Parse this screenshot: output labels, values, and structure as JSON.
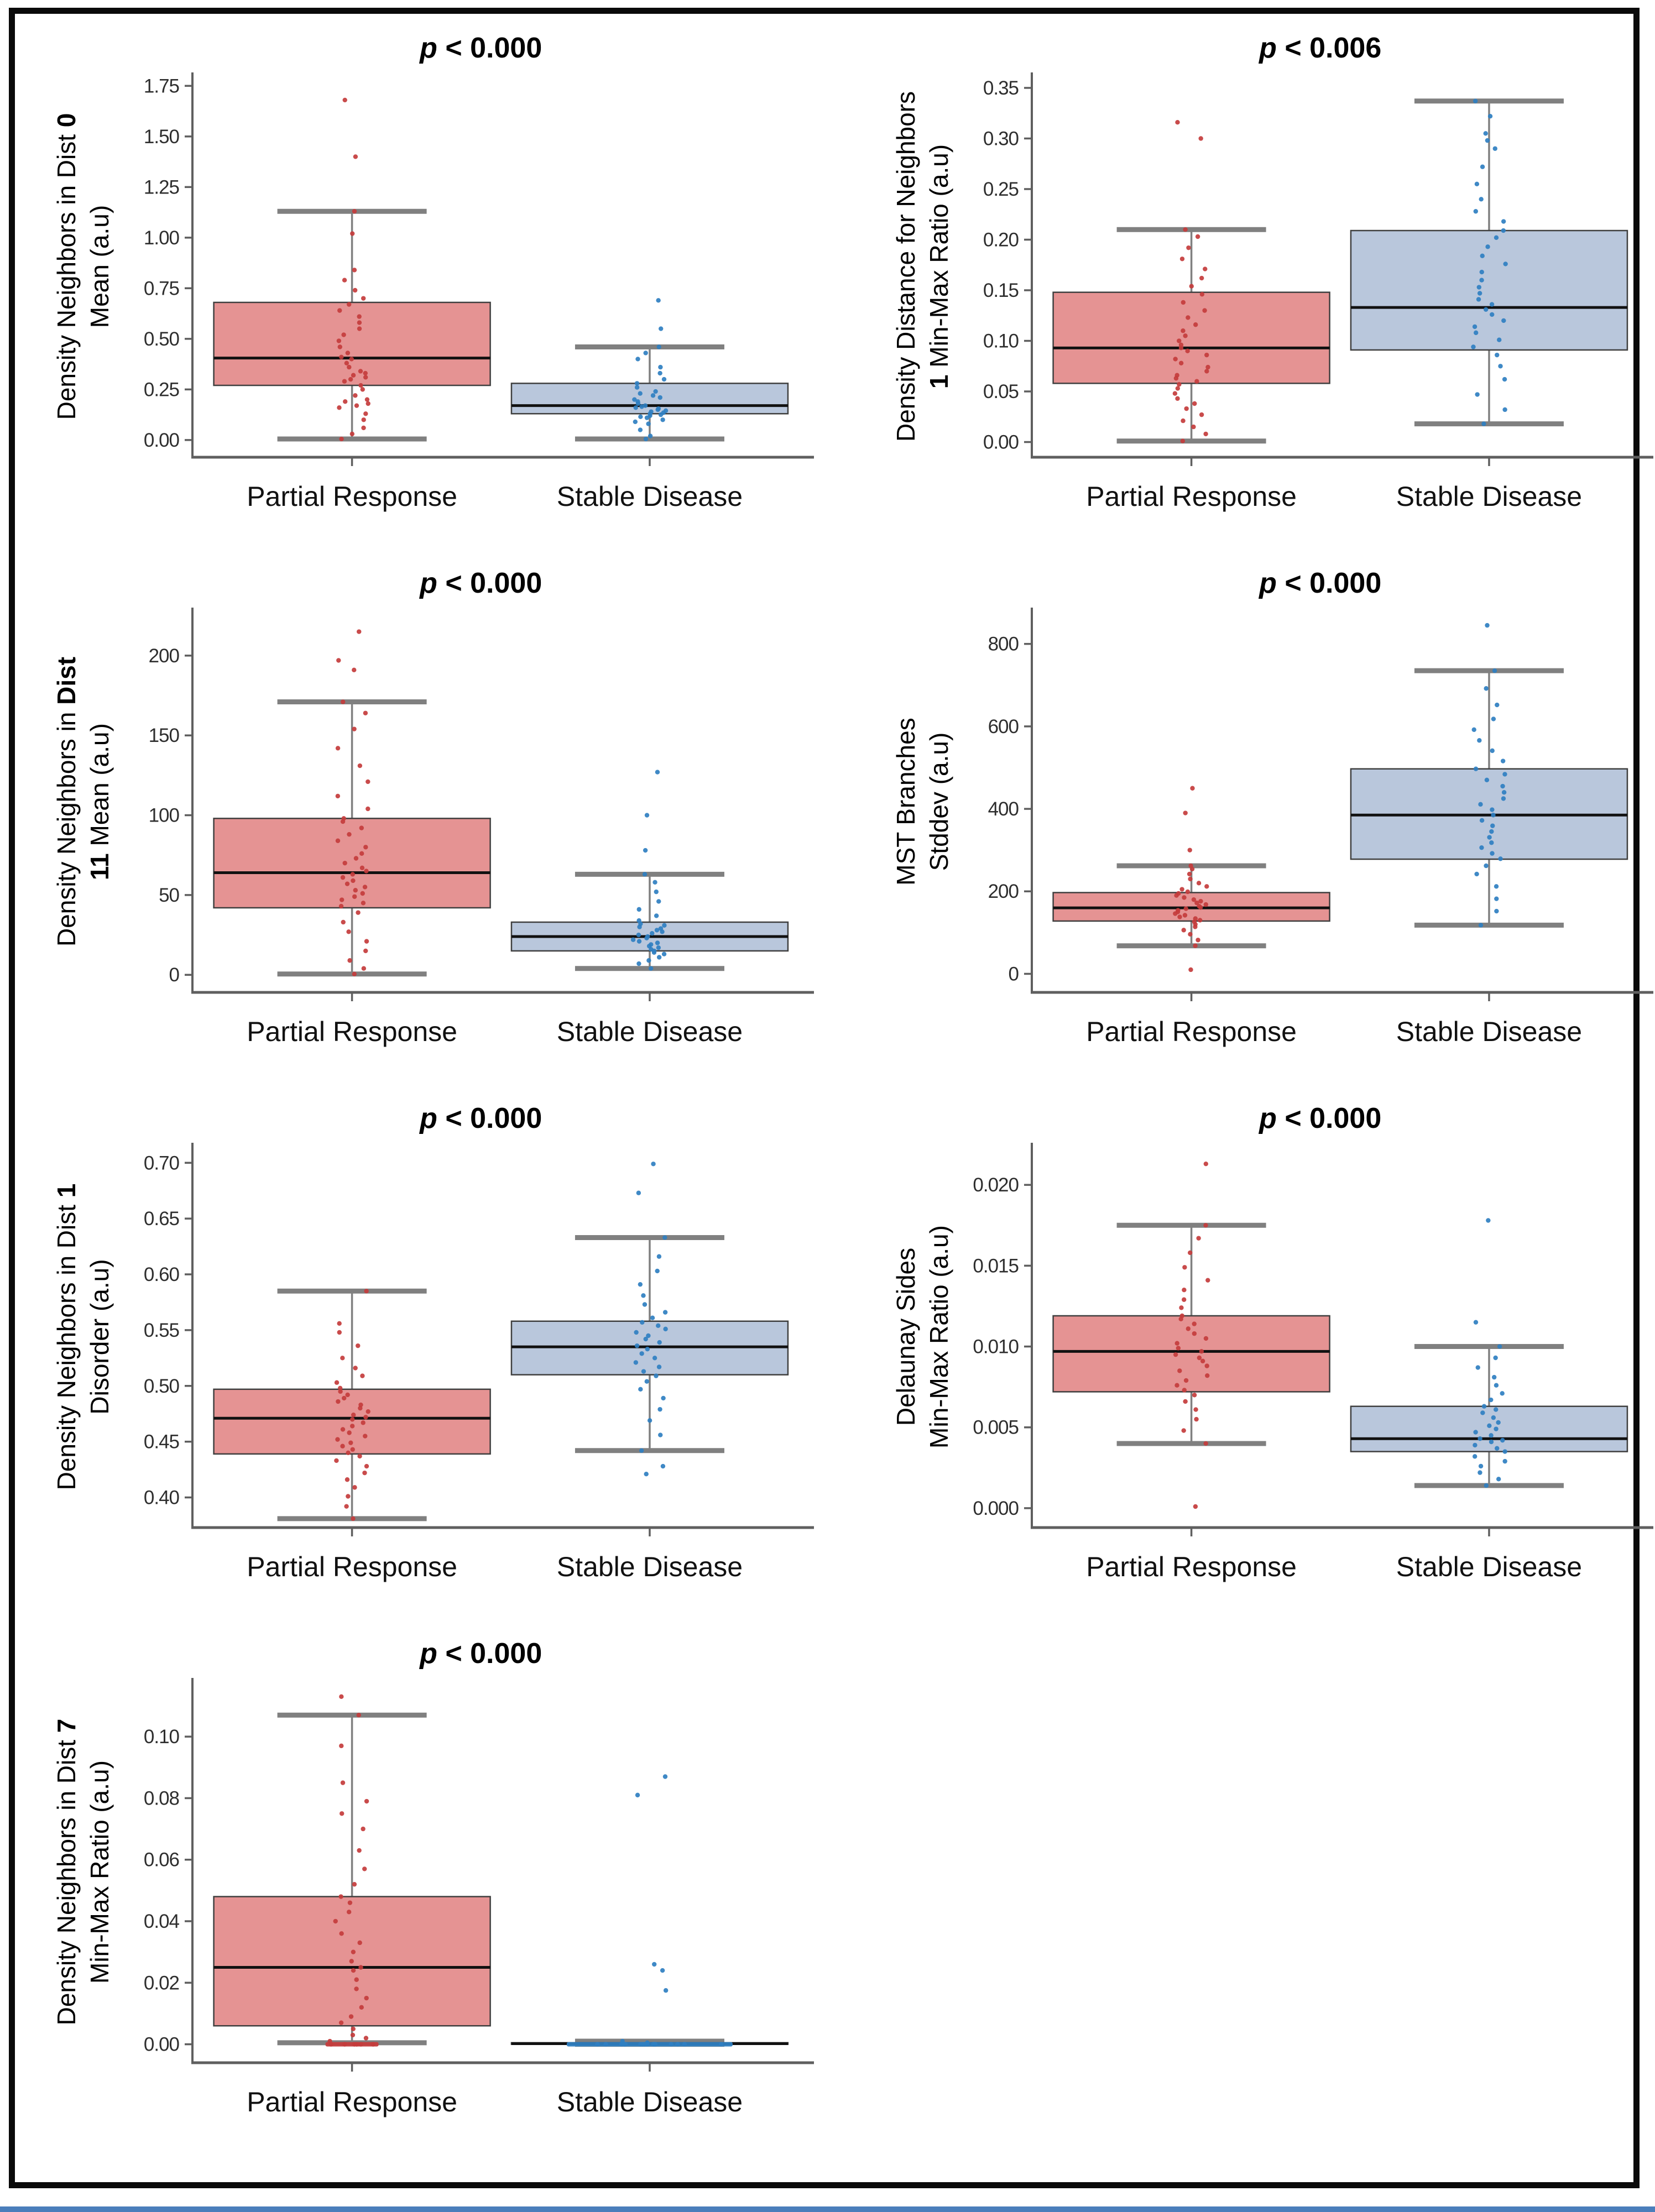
{
  "page": {
    "background": "#ffffff",
    "frame_color": "#0a0a0a",
    "bottom_accent_color": "#4a7ebb"
  },
  "colors": {
    "box_red_fill": "#e59393",
    "box_blue_fill": "#b9c7dc",
    "box_edge": "#3f3f3f",
    "median": "#111111",
    "whisker": "#808080",
    "point_red": "#c43c3c",
    "point_blue": "#2f7fc1",
    "spine": "#5f5f5f",
    "tick_text": "#2e2e2e",
    "title_text": "#000000"
  },
  "categories": [
    "Partial Response",
    "Stable Disease"
  ],
  "chart_data": [
    {
      "type": "box",
      "title": {
        "prefix": "p",
        "rest": " < 0.000"
      },
      "ylabel_lines": [
        [
          [
            "Density Neighbors in Dist ",
            0
          ],
          [
            "0",
            1
          ]
        ],
        [
          [
            "Mean (a.u)",
            0
          ]
        ]
      ],
      "ylim": [
        -0.085,
        1.8
      ],
      "yticks": [
        {
          "v": 0.0,
          "label": "0.00"
        },
        {
          "v": 0.25,
          "label": "0.25"
        },
        {
          "v": 0.5,
          "label": "0.50"
        },
        {
          "v": 0.75,
          "label": "0.75"
        },
        {
          "v": 1.0,
          "label": "1.00"
        },
        {
          "v": 1.25,
          "label": "1.25"
        },
        {
          "v": 1.5,
          "label": "1.50"
        },
        {
          "v": 1.75,
          "label": "1.75"
        }
      ],
      "groups": [
        {
          "name": "Partial Response",
          "color": "red",
          "q1": 0.27,
          "median": 0.405,
          "q3": 0.68,
          "whisker_low": 0.005,
          "whisker_high": 1.13,
          "points": [
            0.005,
            0.03,
            0.06,
            0.1,
            0.13,
            0.16,
            0.17,
            0.18,
            0.19,
            0.2,
            0.22,
            0.25,
            0.27,
            0.29,
            0.3,
            0.31,
            0.32,
            0.33,
            0.34,
            0.36,
            0.38,
            0.4,
            0.41,
            0.43,
            0.46,
            0.49,
            0.52,
            0.55,
            0.58,
            0.61,
            0.64,
            0.67,
            0.7,
            0.74,
            0.79,
            0.84,
            1.02,
            1.13,
            1.4,
            1.68
          ]
        },
        {
          "name": "Stable Disease",
          "color": "blue",
          "q1": 0.13,
          "median": 0.17,
          "q3": 0.28,
          "whisker_low": 0.005,
          "whisker_high": 0.46,
          "points": [
            0.005,
            0.02,
            0.05,
            0.08,
            0.09,
            0.1,
            0.11,
            0.115,
            0.12,
            0.125,
            0.13,
            0.135,
            0.14,
            0.145,
            0.15,
            0.155,
            0.16,
            0.165,
            0.17,
            0.18,
            0.19,
            0.2,
            0.21,
            0.22,
            0.23,
            0.24,
            0.26,
            0.28,
            0.3,
            0.33,
            0.36,
            0.4,
            0.43,
            0.46,
            0.55,
            0.69
          ]
        }
      ]
    },
    {
      "type": "box",
      "title": {
        "prefix": "p",
        "rest": " < 0.006"
      },
      "ylabel_lines": [
        [
          [
            "Density Distance for Neighbors",
            0
          ]
        ],
        [
          [
            "1 ",
            1
          ],
          [
            "Min-Max Ratio (a.u)",
            0
          ]
        ]
      ],
      "ylim": [
        -0.015,
        0.362
      ],
      "yticks": [
        {
          "v": 0.0,
          "label": "0.00"
        },
        {
          "v": 0.05,
          "label": "0.05"
        },
        {
          "v": 0.1,
          "label": "0.10"
        },
        {
          "v": 0.15,
          "label": "0.15"
        },
        {
          "v": 0.2,
          "label": "0.20"
        },
        {
          "v": 0.25,
          "label": "0.25"
        },
        {
          "v": 0.3,
          "label": "0.30"
        },
        {
          "v": 0.35,
          "label": "0.35"
        }
      ],
      "groups": [
        {
          "name": "Partial Response",
          "color": "red",
          "q1": 0.058,
          "median": 0.093,
          "q3": 0.148,
          "whisker_low": 0.001,
          "whisker_high": 0.21,
          "points": [
            0.001,
            0.008,
            0.015,
            0.021,
            0.027,
            0.033,
            0.038,
            0.043,
            0.048,
            0.053,
            0.057,
            0.06,
            0.063,
            0.066,
            0.07,
            0.074,
            0.078,
            0.082,
            0.086,
            0.09,
            0.093,
            0.096,
            0.1,
            0.105,
            0.11,
            0.116,
            0.123,
            0.13,
            0.138,
            0.146,
            0.154,
            0.162,
            0.171,
            0.181,
            0.192,
            0.203,
            0.21,
            0.3,
            0.316
          ]
        },
        {
          "name": "Stable Disease",
          "color": "blue",
          "q1": 0.091,
          "median": 0.133,
          "q3": 0.209,
          "whisker_low": 0.018,
          "whisker_high": 0.337,
          "points": [
            0.018,
            0.032,
            0.047,
            0.062,
            0.075,
            0.086,
            0.094,
            0.101,
            0.108,
            0.114,
            0.12,
            0.126,
            0.131,
            0.136,
            0.141,
            0.147,
            0.153,
            0.16,
            0.168,
            0.176,
            0.184,
            0.193,
            0.202,
            0.209,
            0.218,
            0.228,
            0.24,
            0.255,
            0.272,
            0.29,
            0.298,
            0.305,
            0.322,
            0.337
          ]
        }
      ]
    },
    {
      "type": "box",
      "title": {
        "prefix": "p",
        "rest": " < 0.000"
      },
      "ylabel_lines": [
        [
          [
            "Density Neighbors in ",
            0
          ],
          [
            "Dist",
            1
          ]
        ],
        [
          [
            "11 ",
            1
          ],
          [
            "Mean (a.u)",
            0
          ]
        ]
      ],
      "ylim": [
        -11,
        228
      ],
      "yticks": [
        {
          "v": 0,
          "label": "0"
        },
        {
          "v": 50,
          "label": "50"
        },
        {
          "v": 100,
          "label": "100"
        },
        {
          "v": 150,
          "label": "150"
        },
        {
          "v": 200,
          "label": "200"
        }
      ],
      "groups": [
        {
          "name": "Partial Response",
          "color": "red",
          "q1": 42,
          "median": 64,
          "q3": 98,
          "whisker_low": 0.5,
          "whisker_high": 171,
          "points": [
            0.5,
            4,
            9,
            15,
            21,
            27,
            33,
            39,
            43,
            45,
            47,
            49,
            51,
            53,
            55,
            57,
            59,
            61,
            63,
            65,
            67,
            70,
            73,
            76,
            80,
            84,
            88,
            92,
            96,
            98,
            104,
            112,
            121,
            131,
            142,
            154,
            164,
            171,
            191,
            197,
            215
          ]
        },
        {
          "name": "Stable Disease",
          "color": "blue",
          "q1": 15,
          "median": 24,
          "q3": 33,
          "whisker_low": 4,
          "whisker_high": 63,
          "points": [
            4,
            7,
            9,
            11,
            13,
            14,
            15,
            16,
            17,
            18,
            19,
            20,
            21,
            22,
            23,
            24,
            25,
            26,
            27,
            28,
            29,
            30,
            31,
            32,
            34,
            37,
            41,
            46,
            52,
            58,
            63,
            78,
            100,
            127
          ]
        }
      ]
    },
    {
      "type": "box",
      "title": {
        "prefix": "p",
        "rest": " < 0.000"
      },
      "ylabel_lines": [
        [
          [
            "MST Branches",
            0
          ]
        ],
        [
          [
            "Stddev (a.u)",
            0
          ]
        ]
      ],
      "ylim": [
        -45,
        880
      ],
      "yticks": [
        {
          "v": 0,
          "label": "0"
        },
        {
          "v": 200,
          "label": "200"
        },
        {
          "v": 400,
          "label": "400"
        },
        {
          "v": 600,
          "label": "600"
        },
        {
          "v": 800,
          "label": "800"
        }
      ],
      "groups": [
        {
          "name": "Partial Response",
          "color": "red",
          "q1": 128,
          "median": 160,
          "q3": 197,
          "whisker_low": 68,
          "whisker_high": 262,
          "points": [
            10,
            68,
            82,
            96,
            106,
            114,
            120,
            126,
            130,
            134,
            138,
            142,
            146,
            150,
            154,
            158,
            161,
            164,
            168,
            172,
            176,
            180,
            185,
            190,
            195,
            199,
            205,
            212,
            220,
            230,
            242,
            254,
            262,
            300,
            390,
            450
          ]
        },
        {
          "name": "Stable Disease",
          "color": "blue",
          "q1": 278,
          "median": 385,
          "q3": 497,
          "whisker_low": 118,
          "whisker_high": 735,
          "points": [
            118,
            152,
            182,
            212,
            242,
            262,
            279,
            292,
            306,
            318,
            331,
            345,
            359,
            372,
            385,
            398,
            411,
            425,
            440,
            455,
            470,
            484,
            497,
            516,
            541,
            566,
            592,
            618,
            652,
            692,
            735,
            845
          ]
        }
      ]
    },
    {
      "type": "box",
      "title": {
        "prefix": "p",
        "rest": " < 0.000"
      },
      "ylabel_lines": [
        [
          [
            "Density Neighbors in Dist ",
            0
          ],
          [
            "1",
            1
          ]
        ],
        [
          [
            "Disorder (a.u)",
            0
          ]
        ]
      ],
      "ylim": [
        0.373,
        0.715
      ],
      "yticks": [
        {
          "v": 0.4,
          "label": "0.40"
        },
        {
          "v": 0.45,
          "label": "0.45"
        },
        {
          "v": 0.5,
          "label": "0.50"
        },
        {
          "v": 0.55,
          "label": "0.55"
        },
        {
          "v": 0.6,
          "label": "0.60"
        },
        {
          "v": 0.65,
          "label": "0.65"
        },
        {
          "v": 0.7,
          "label": "0.70"
        }
      ],
      "groups": [
        {
          "name": "Partial Response",
          "color": "red",
          "q1": 0.439,
          "median": 0.471,
          "q3": 0.497,
          "whisker_low": 0.381,
          "whisker_high": 0.585,
          "points": [
            0.381,
            0.392,
            0.401,
            0.409,
            0.416,
            0.422,
            0.428,
            0.433,
            0.437,
            0.44,
            0.443,
            0.446,
            0.449,
            0.452,
            0.455,
            0.458,
            0.461,
            0.464,
            0.467,
            0.47,
            0.472,
            0.474,
            0.477,
            0.48,
            0.483,
            0.486,
            0.489,
            0.492,
            0.495,
            0.498,
            0.503,
            0.509,
            0.516,
            0.525,
            0.536,
            0.548,
            0.556,
            0.585
          ]
        },
        {
          "name": "Stable Disease",
          "color": "blue",
          "q1": 0.51,
          "median": 0.535,
          "q3": 0.558,
          "whisker_low": 0.442,
          "whisker_high": 0.633,
          "points": [
            0.421,
            0.428,
            0.442,
            0.456,
            0.469,
            0.479,
            0.489,
            0.497,
            0.504,
            0.509,
            0.513,
            0.517,
            0.521,
            0.525,
            0.529,
            0.533,
            0.536,
            0.539,
            0.542,
            0.545,
            0.548,
            0.551,
            0.554,
            0.557,
            0.561,
            0.566,
            0.573,
            0.581,
            0.591,
            0.603,
            0.616,
            0.633,
            0.673,
            0.699
          ]
        }
      ]
    },
    {
      "type": "box",
      "title": {
        "prefix": "p",
        "rest": " < 0.000"
      },
      "ylabel_lines": [
        [
          [
            "Delaunay Sides",
            0
          ]
        ],
        [
          [
            "Min-Max Ratio (a.u)",
            0
          ]
        ]
      ],
      "ylim": [
        -0.0012,
        0.0224
      ],
      "yticks": [
        {
          "v": 0.0,
          "label": "0.000"
        },
        {
          "v": 0.005,
          "label": "0.005"
        },
        {
          "v": 0.01,
          "label": "0.010"
        },
        {
          "v": 0.015,
          "label": "0.015"
        },
        {
          "v": 0.02,
          "label": "0.020"
        }
      ],
      "groups": [
        {
          "name": "Partial Response",
          "color": "red",
          "q1": 0.0072,
          "median": 0.0097,
          "q3": 0.0119,
          "whisker_low": 0.004,
          "whisker_high": 0.0175,
          "points": [
            0.0001,
            0.004,
            0.0048,
            0.0055,
            0.0061,
            0.0066,
            0.007,
            0.0073,
            0.0076,
            0.0079,
            0.0082,
            0.0085,
            0.0088,
            0.0091,
            0.0093,
            0.0095,
            0.0097,
            0.0099,
            0.0102,
            0.0105,
            0.0108,
            0.0111,
            0.0114,
            0.0117,
            0.0119,
            0.0124,
            0.0129,
            0.0135,
            0.0141,
            0.0149,
            0.0158,
            0.0167,
            0.0175,
            0.0213
          ]
        },
        {
          "name": "Stable Disease",
          "color": "blue",
          "q1": 0.0035,
          "median": 0.0043,
          "q3": 0.0063,
          "whisker_low": 0.0014,
          "whisker_high": 0.01,
          "points": [
            0.0014,
            0.0018,
            0.0022,
            0.0026,
            0.0029,
            0.0032,
            0.0035,
            0.0037,
            0.0039,
            0.0041,
            0.0042,
            0.0043,
            0.0045,
            0.0047,
            0.0049,
            0.0051,
            0.0053,
            0.0056,
            0.0059,
            0.0061,
            0.0063,
            0.0067,
            0.0071,
            0.0076,
            0.0081,
            0.0087,
            0.0093,
            0.01,
            0.0115,
            0.0178
          ]
        }
      ]
    },
    {
      "type": "box",
      "title": {
        "prefix": "p",
        "rest": " < 0.000"
      },
      "ylabel_lines": [
        [
          [
            "Density Neighbors in Dist ",
            0
          ],
          [
            "7",
            1
          ]
        ],
        [
          [
            "Min-Max Ratio (a.u)",
            0
          ]
        ]
      ],
      "ylim": [
        -0.006,
        0.118
      ],
      "yticks": [
        {
          "v": 0.0,
          "label": "0.00"
        },
        {
          "v": 0.02,
          "label": "0.02"
        },
        {
          "v": 0.04,
          "label": "0.04"
        },
        {
          "v": 0.06,
          "label": "0.06"
        },
        {
          "v": 0.08,
          "label": "0.08"
        },
        {
          "v": 0.1,
          "label": "0.10"
        }
      ],
      "groups": [
        {
          "name": "Partial Response",
          "color": "red",
          "q1": 0.006,
          "median": 0.025,
          "q3": 0.048,
          "whisker_low": 0.0005,
          "whisker_high": 0.107,
          "band": {
            "value": 0.0,
            "half_width": 48
          },
          "wide_jitter_max": 0.001,
          "wide_jitter_amp": 46,
          "points": [
            0,
            0,
            0,
            0,
            0,
            0,
            0.001,
            0.002,
            0.003,
            0.005,
            0.007,
            0.009,
            0.012,
            0.015,
            0.018,
            0.021,
            0.024,
            0.025,
            0.027,
            0.03,
            0.033,
            0.036,
            0.04,
            0.043,
            0.046,
            0.048,
            0.052,
            0.057,
            0.063,
            0.07,
            0.075,
            0.079,
            0.085,
            0.097,
            0.107,
            0.113
          ]
        },
        {
          "name": "Stable Disease",
          "color": "blue",
          "q1": 0.0,
          "median": 0.0002,
          "q3": 0.0005,
          "whisker_low": 0.0,
          "whisker_high": 0.001,
          "band": {
            "value": 0.0,
            "half_width": 150
          },
          "wide_jitter_max": 0.002,
          "wide_jitter_amp": 140,
          "points": [
            0,
            0,
            0,
            0,
            0,
            0,
            0,
            0,
            0,
            0,
            0,
            0,
            0,
            0,
            0,
            0,
            0,
            0.0005,
            0.001,
            0.0175,
            0.024,
            0.026,
            0.081,
            0.087
          ]
        }
      ]
    }
  ]
}
